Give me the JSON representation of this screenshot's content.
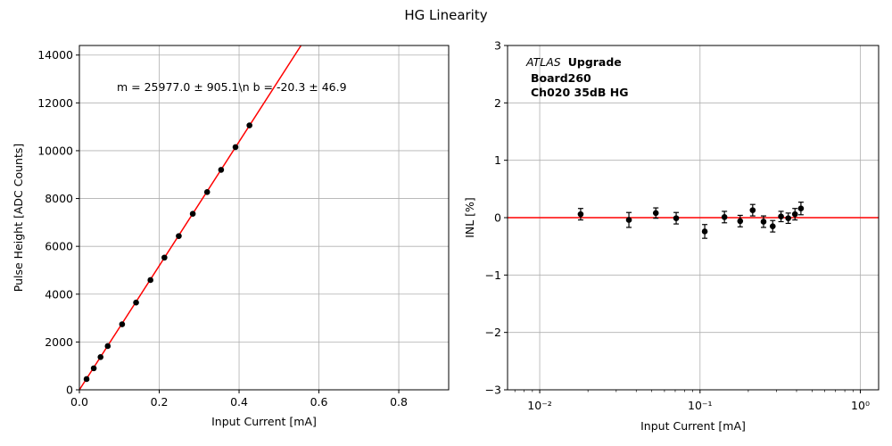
{
  "figure_title": "HG Linearity",
  "chart_data": [
    {
      "type": "scatter",
      "title": "",
      "xlabel": "Input Current [mA]",
      "ylabel": "Pulse Height [ADC Counts]",
      "xlim": [
        0,
        0.925
      ],
      "ylim": [
        0,
        14400
      ],
      "xticks": [
        0,
        0.2,
        0.4,
        0.6,
        0.8
      ],
      "xtick_labels": [
        "0.0",
        "0.2",
        "0.4",
        "0.6",
        "0.8"
      ],
      "yticks": [
        0,
        2000,
        4000,
        6000,
        8000,
        10000,
        12000,
        14000
      ],
      "ytick_labels": [
        "0",
        "2000",
        "4000",
        "6000",
        "8000",
        "10000",
        "12000",
        "14000"
      ],
      "grid": true,
      "annotation": "m = 25977.0 ± 905.1\\n b = -20.3 ± 46.9",
      "series": [
        {
          "x": [
            0.018,
            0.036,
            0.053,
            0.071,
            0.107,
            0.142,
            0.178,
            0.213,
            0.249,
            0.284,
            0.32,
            0.355,
            0.391,
            0.426
          ],
          "y": [
            450,
            900,
            1370,
            1830,
            2740,
            3650,
            4590,
            5530,
            6430,
            7360,
            8270,
            9200,
            10150,
            11060
          ],
          "color": "#000000"
        }
      ],
      "fit": {
        "slope": 25977.0,
        "intercept": -20.3,
        "color": "#ff0000"
      }
    },
    {
      "type": "scatter",
      "title": "",
      "xlabel": "Input Current [mA]",
      "ylabel": "INL [%]",
      "xscale": "log",
      "xlim": [
        0.0063,
        1.3
      ],
      "ylim": [
        -3,
        3
      ],
      "xticks": [
        0.01,
        0.1,
        1
      ],
      "xtick_labels": [
        "10⁻²",
        "10⁻¹",
        "10⁰"
      ],
      "yticks": [
        -3,
        -2,
        -1,
        0,
        1,
        2,
        3
      ],
      "ytick_labels": [
        "−3",
        "−2",
        "−1",
        "0",
        "1",
        "2",
        "3"
      ],
      "grid": true,
      "annotation_lines": [
        "ATLAS",
        "Upgrade",
        "Board260",
        "Ch020 35dB HG"
      ],
      "series": [
        {
          "x": [
            0.018,
            0.036,
            0.053,
            0.071,
            0.107,
            0.142,
            0.178,
            0.213,
            0.249,
            0.284,
            0.32,
            0.355,
            0.391,
            0.426
          ],
          "y": [
            0.06,
            -0.04,
            0.08,
            -0.01,
            -0.24,
            0.01,
            -0.06,
            0.13,
            -0.07,
            -0.15,
            0.02,
            -0.01,
            0.06,
            0.16
          ],
          "err": [
            0.1,
            0.13,
            0.09,
            0.1,
            0.12,
            0.1,
            0.1,
            0.1,
            0.1,
            0.1,
            0.09,
            0.09,
            0.1,
            0.11
          ],
          "color": "#000000"
        }
      ],
      "reference_line": {
        "y": 0,
        "color": "#ff0000"
      }
    }
  ]
}
